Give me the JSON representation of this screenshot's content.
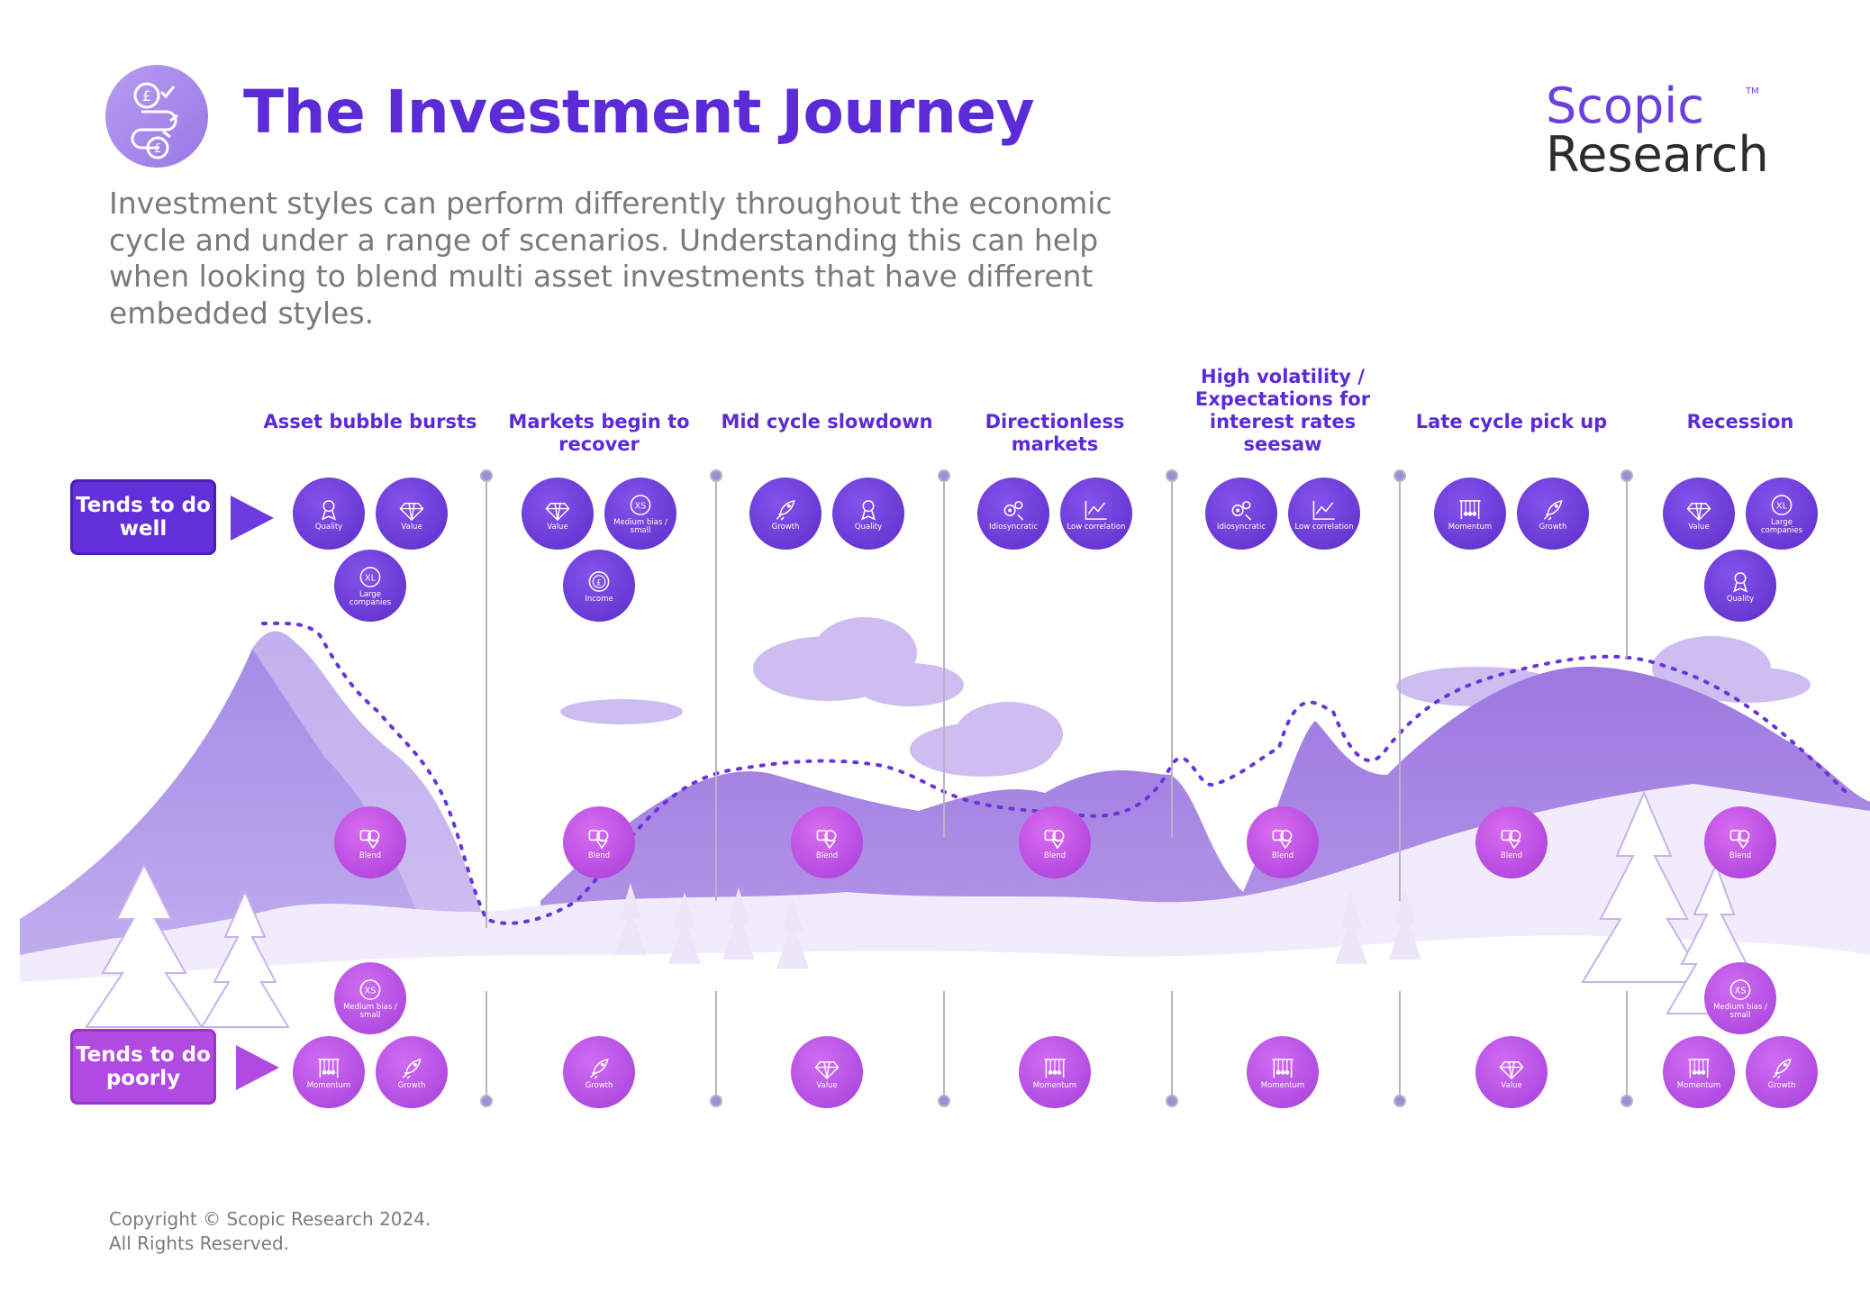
{
  "header": {
    "title": "The Investment Journey",
    "intro": "Investment styles can perform differently throughout the economic cycle and under a range of scenarios. Understanding this can help when looking to blend multi asset investments that have different embedded styles."
  },
  "logo": {
    "line1": "Scopic",
    "line2": "Research",
    "tm": "TM"
  },
  "rows": {
    "good_label": "Tends to do well",
    "poor_label": "Tends to do poorly"
  },
  "phases": [
    {
      "title": "Asset bubble bursts",
      "good": [
        [
          "Quality",
          "quality-icon"
        ],
        [
          "Value",
          "diamond-icon"
        ],
        [
          "Large companies",
          "xl-icon"
        ]
      ],
      "poor": [
        [
          "Medium bias / small",
          "xs-icon"
        ],
        [
          "Momentum",
          "newtons-cradle-icon"
        ],
        [
          "Growth",
          "rocket-icon"
        ]
      ]
    },
    {
      "title": "Markets begin to recover",
      "good": [
        [
          "Value",
          "diamond-icon"
        ],
        [
          "Medium bias / small",
          "xs-icon"
        ],
        [
          "Income",
          "coin-icon"
        ]
      ],
      "poor": [
        [
          "Growth",
          "rocket-icon"
        ]
      ]
    },
    {
      "title": "Mid cycle slowdown",
      "good": [
        [
          "Growth",
          "rocket-icon"
        ],
        [
          "Quality",
          "quality-icon"
        ]
      ],
      "poor": [
        [
          "Value",
          "diamond-icon"
        ]
      ]
    },
    {
      "title": "Directionless markets",
      "good": [
        [
          "Idiosyncratic",
          "gears-icon"
        ],
        [
          "Low correlation",
          "chart-icon"
        ]
      ],
      "poor": [
        [
          "Momentum",
          "newtons-cradle-icon"
        ]
      ]
    },
    {
      "title": "High volatility / Expectations for interest rates seesaw",
      "good": [
        [
          "Idiosyncratic",
          "gears-icon"
        ],
        [
          "Low correlation",
          "chart-icon"
        ]
      ],
      "poor": [
        [
          "Momentum",
          "newtons-cradle-icon"
        ]
      ]
    },
    {
      "title": "Late cycle pick up",
      "good": [
        [
          "Momentum",
          "newtons-cradle-icon"
        ],
        [
          "Growth",
          "rocket-icon"
        ]
      ],
      "poor": [
        [
          "Value",
          "diamond-icon"
        ]
      ]
    },
    {
      "title": "Recession",
      "good": [
        [
          "Value",
          "diamond-icon"
        ],
        [
          "Large companies",
          "xl-icon"
        ],
        [
          "Quality",
          "quality-icon"
        ]
      ],
      "poor": [
        [
          "Medium bias / small",
          "xs-icon"
        ],
        [
          "Momentum",
          "newtons-cradle-icon"
        ],
        [
          "Growth",
          "rocket-icon"
        ]
      ]
    }
  ],
  "blend_label": "Blend",
  "copyright": {
    "line1": "Copyright © Scopic Research 2024.",
    "line2": "All Rights Reserved."
  },
  "colors": {
    "primary": "#5b2bd8",
    "good_badge": "#6a3be0",
    "blend_badge": "#c557e8",
    "poor_badge": "#bb55ea",
    "text_grey": "#7a7a7a"
  }
}
